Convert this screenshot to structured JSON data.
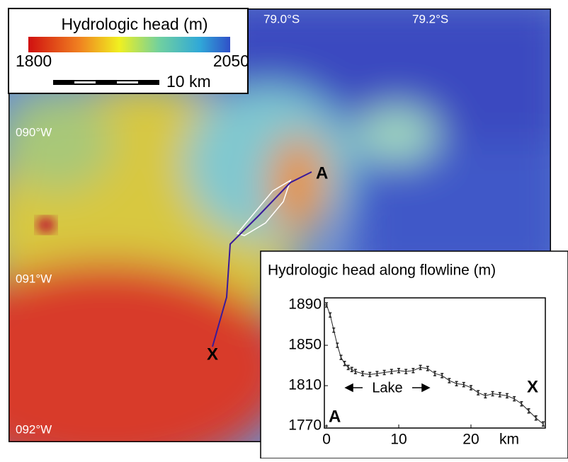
{
  "map": {
    "legend_title": "Hydrologic head (m)",
    "colorbar_min": 1800,
    "colorbar_max": 2050,
    "scale_label": "10 km",
    "lat_labels": [
      "79.0°S",
      "79.2°S"
    ],
    "lon_labels": [
      "090°W",
      "091°W",
      "092°W"
    ],
    "point_a": "A",
    "point_x": "X"
  },
  "chart_data": {
    "type": "line",
    "title": "Hydrologic head along flowline (m)",
    "x_label": "km",
    "annotations": [
      "Lake",
      "A",
      "X"
    ],
    "x": [
      0,
      0.5,
      1,
      1.5,
      2,
      2.5,
      3,
      3.5,
      4,
      5,
      6,
      7,
      8,
      9,
      10,
      11,
      12,
      13,
      14,
      15,
      16,
      17,
      18,
      19,
      20,
      21,
      22,
      23,
      24,
      25,
      26,
      27,
      28,
      29,
      30
    ],
    "values": [
      1890,
      1880,
      1865,
      1850,
      1838,
      1832,
      1828,
      1826,
      1824,
      1822,
      1821,
      1822,
      1823,
      1824,
      1825,
      1824,
      1825,
      1828,
      1827,
      1822,
      1820,
      1815,
      1812,
      1811,
      1808,
      1803,
      1800,
      1802,
      1801,
      1800,
      1797,
      1792,
      1785,
      1778,
      1772
    ],
    "color": "#222222",
    "xlim": [
      -0.3,
      30.3
    ],
    "ylim": [
      1768,
      1897
    ],
    "xticks": [
      0,
      10,
      20
    ],
    "yticks": [
      1770,
      1810,
      1850,
      1890
    ]
  }
}
